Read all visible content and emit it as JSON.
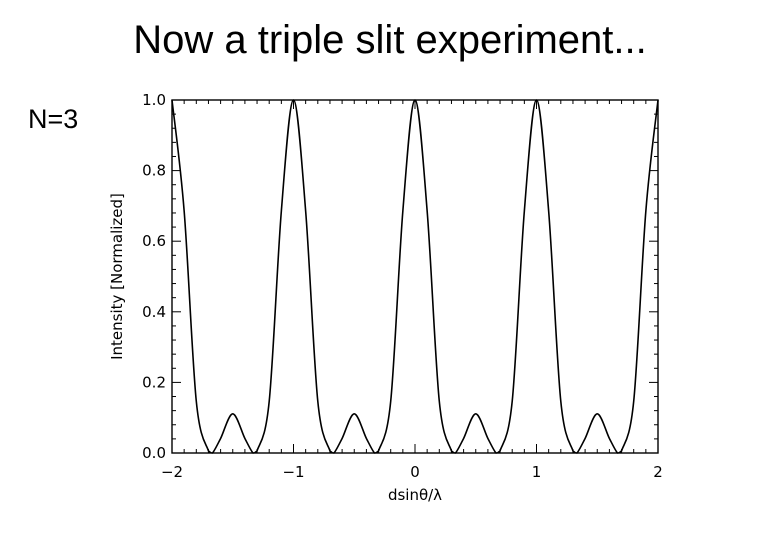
{
  "slide": {
    "title": "Now a triple slit experiment...",
    "n_label": "N=3"
  },
  "colors": {
    "line": "#000000",
    "background": "#ffffff"
  },
  "chart_data": {
    "type": "line",
    "title": "",
    "xlabel": "dsinθ/λ",
    "ylabel": "Intensity [Normalized]",
    "xlim": [
      -2,
      2
    ],
    "ylim": [
      0,
      1
    ],
    "x_ticks": [
      {
        "value": -2,
        "label": "−2"
      },
      {
        "value": -1,
        "label": "−1"
      },
      {
        "value": 0,
        "label": "0"
      },
      {
        "value": 1,
        "label": "1"
      },
      {
        "value": 2,
        "label": "2"
      }
    ],
    "y_ticks": [
      {
        "value": 0.0,
        "label": "0.0"
      },
      {
        "value": 0.2,
        "label": "0.2"
      },
      {
        "value": 0.4,
        "label": "0.4"
      },
      {
        "value": 0.6,
        "label": "0.6"
      },
      {
        "value": 0.8,
        "label": "0.8"
      },
      {
        "value": 1.0,
        "label": "1.0"
      }
    ],
    "grid": false,
    "series": [
      {
        "x": [
          -2.0,
          -1.9,
          -1.8,
          -1.7,
          -1.667,
          -1.6,
          -1.5,
          -1.4,
          -1.333,
          -1.3,
          -1.2,
          -1.1,
          -1.0,
          -0.9,
          -0.8,
          -0.7,
          -0.667,
          -0.6,
          -0.5,
          -0.4,
          -0.333,
          -0.3,
          -0.2,
          -0.1,
          0.0,
          0.1,
          0.2,
          0.3,
          0.333,
          0.4,
          0.5,
          0.6,
          0.667,
          0.7,
          0.8,
          0.9,
          1.0,
          1.1,
          1.2,
          1.3,
          1.333,
          1.4,
          1.5,
          1.6,
          1.667,
          1.7,
          1.8,
          1.9,
          2.0
        ],
        "y": [
          1.0,
          0.6855,
          0.1464,
          0.006,
          0.0,
          0.0412,
          0.1111,
          0.0412,
          0.0,
          0.006,
          0.1464,
          0.6855,
          1.0,
          0.6855,
          0.1464,
          0.006,
          0.0,
          0.0412,
          0.1111,
          0.0412,
          0.0,
          0.006,
          0.1464,
          0.6855,
          1.0,
          0.6855,
          0.1464,
          0.006,
          0.0,
          0.0412,
          0.1111,
          0.0412,
          0.0,
          0.006,
          0.1464,
          0.6855,
          1.0,
          0.6855,
          0.1464,
          0.006,
          0.0,
          0.0412,
          0.1111,
          0.0412,
          0.0,
          0.006,
          0.1464,
          0.6855,
          1.0
        ]
      }
    ]
  }
}
